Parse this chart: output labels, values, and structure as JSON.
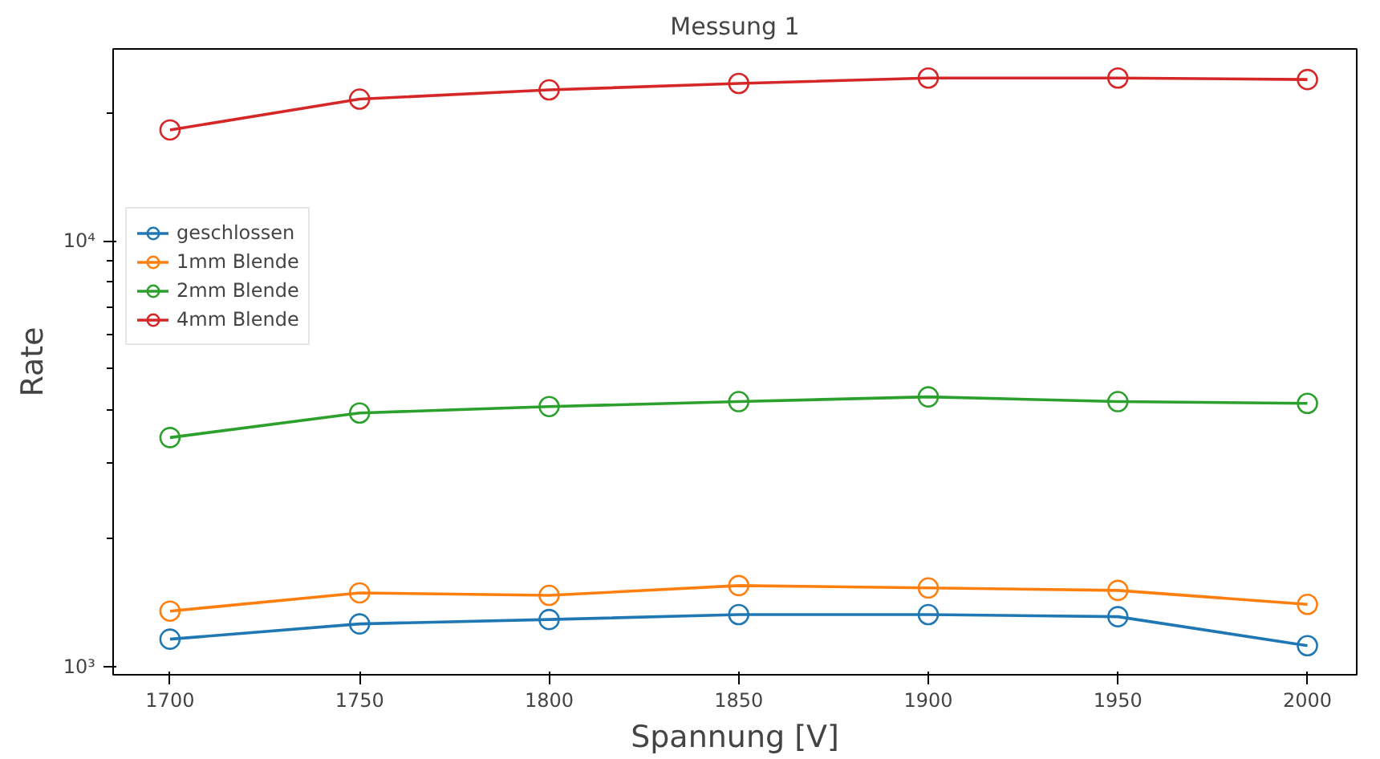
{
  "chart_data": {
    "type": "line",
    "title": "Messung 1",
    "xlabel": "Spannung [V]",
    "ylabel": "Rate",
    "x": [
      1700,
      1750,
      1800,
      1850,
      1900,
      1950,
      2000
    ],
    "series": [
      {
        "name": "geschlossen",
        "color": "#1f77b4",
        "values": [
          1160,
          1260,
          1290,
          1325,
          1325,
          1310,
          1120
        ]
      },
      {
        "name": "1mm Blende",
        "color": "#ff7f0e",
        "values": [
          1350,
          1490,
          1470,
          1550,
          1530,
          1510,
          1400
        ]
      },
      {
        "name": "2mm Blende",
        "color": "#2ca02c",
        "values": [
          3450,
          3940,
          4080,
          4190,
          4300,
          4190,
          4150
        ]
      },
      {
        "name": "4mm Blende",
        "color": "#d62728",
        "values": [
          18200,
          21500,
          22600,
          23400,
          24100,
          24100,
          23900
        ]
      }
    ],
    "log": "y",
    "xlim": [
      1685,
      2013
    ],
    "ylim": [
      957,
      28200
    ],
    "xticks": [
      1700,
      1750,
      1800,
      1850,
      1900,
      1950,
      2000
    ],
    "yticks": [
      {
        "value": 1000,
        "label": "10³"
      },
      {
        "value": 10000,
        "label": "10⁴"
      }
    ],
    "grid": false,
    "legend": "left",
    "marker": "circle",
    "line_style": "solid"
  }
}
